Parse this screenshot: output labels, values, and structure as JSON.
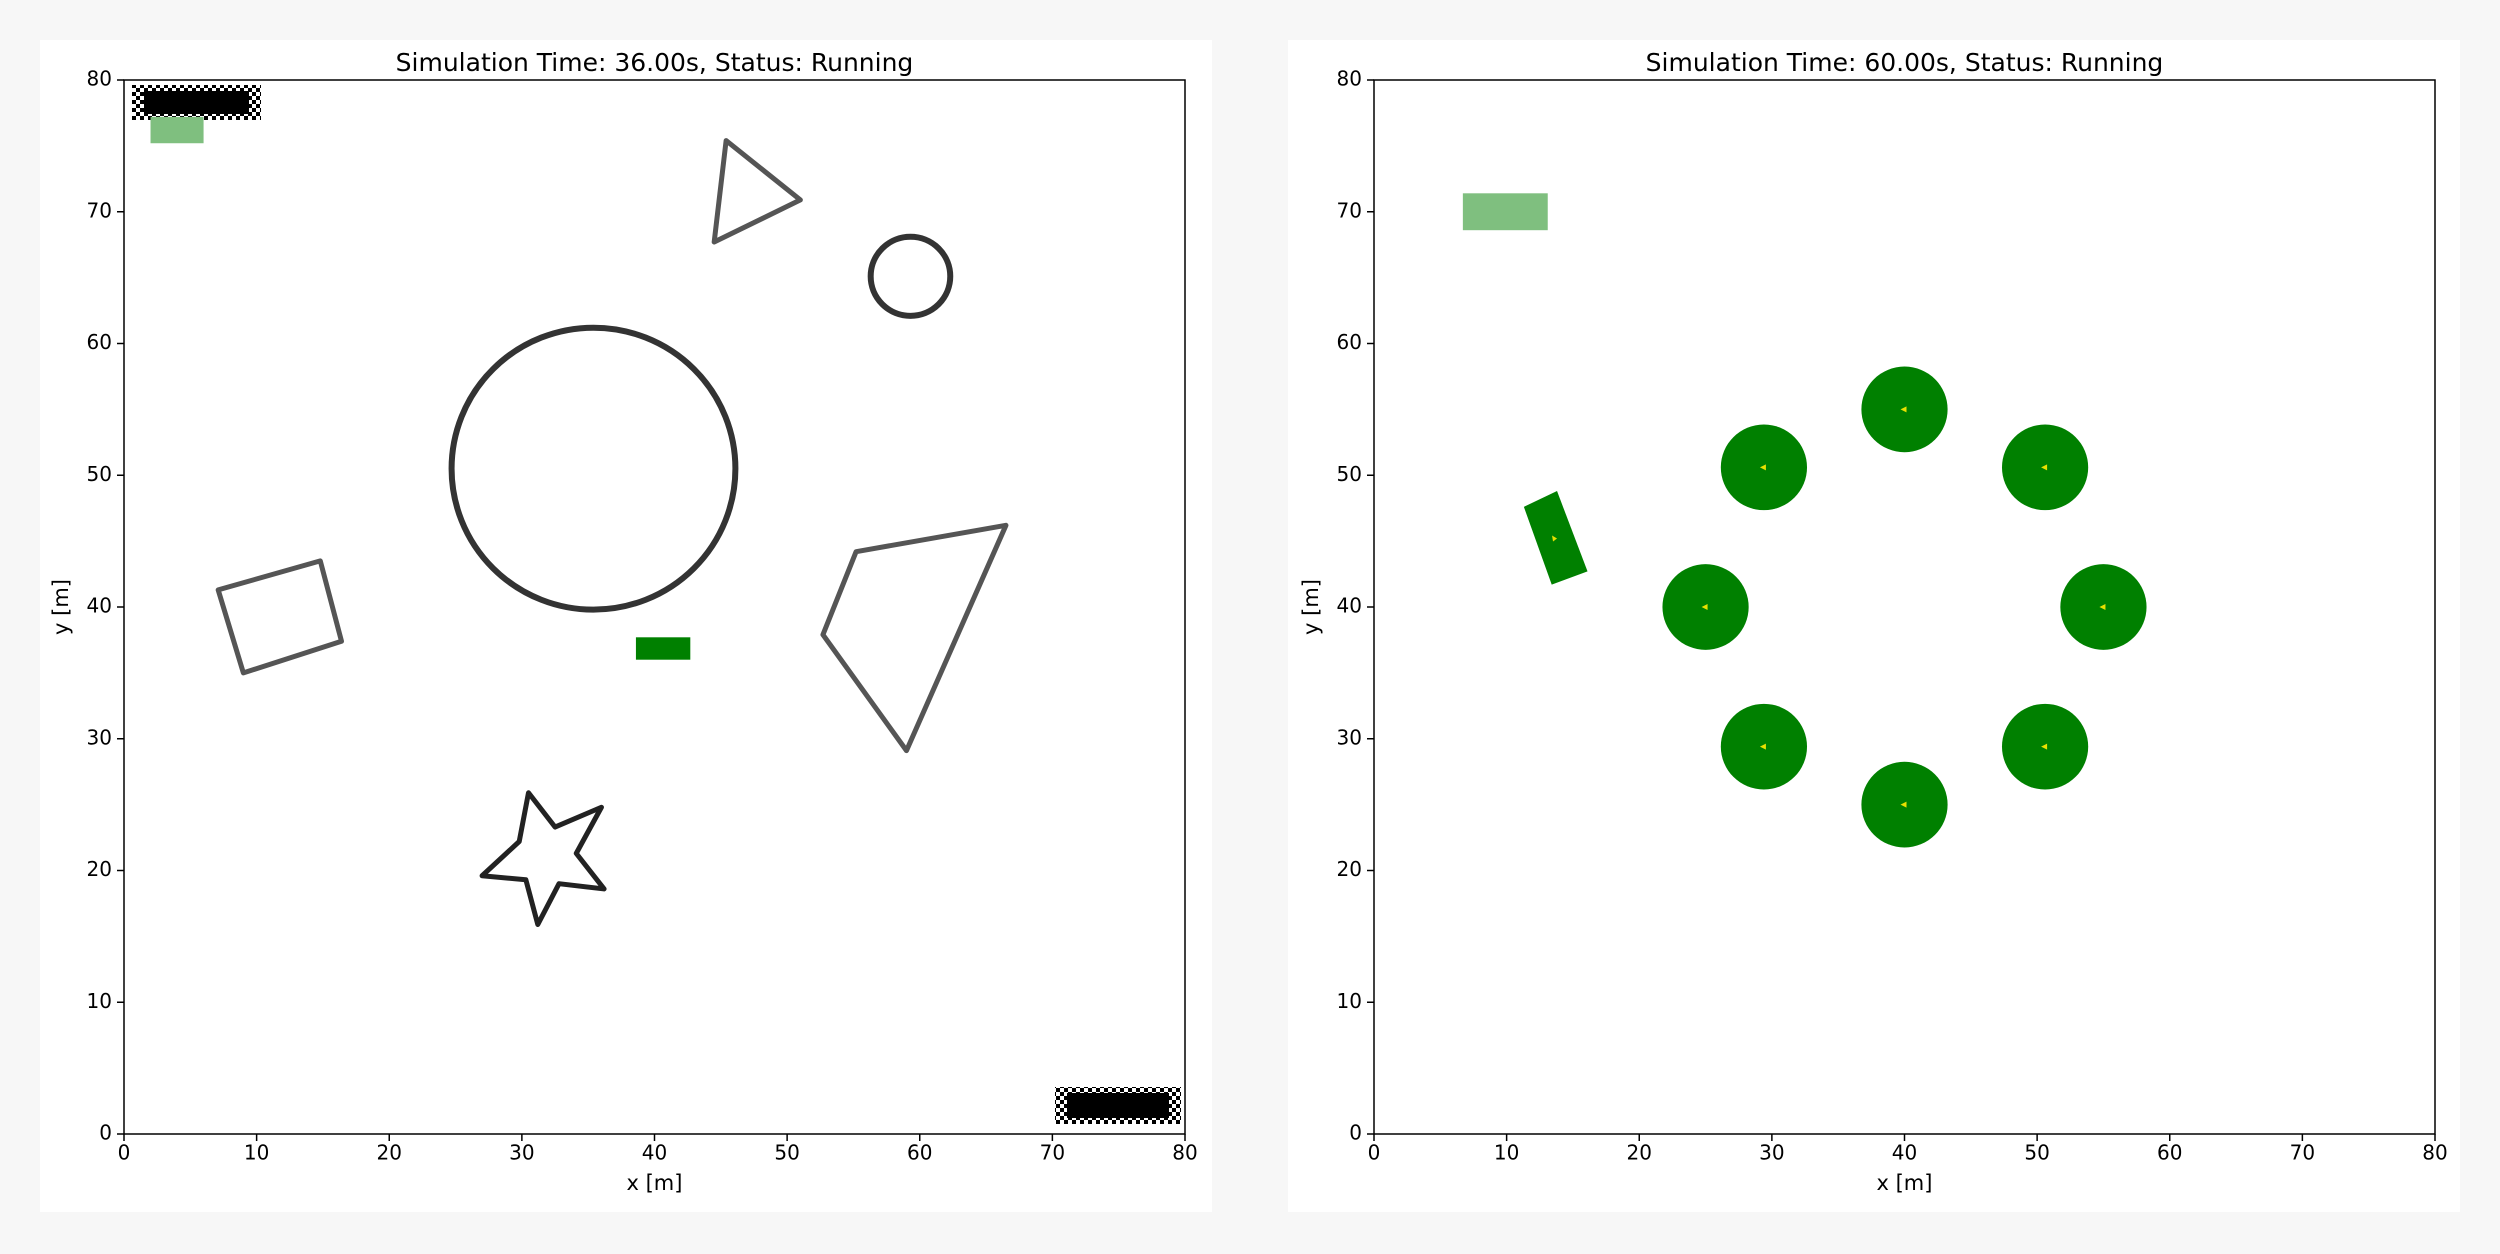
{
  "chart_data": [
    {
      "type": "scene",
      "title": "Simulation Time: 36.00s, Status: Running",
      "xlabel": "x [m]",
      "ylabel": "y [m]",
      "xlim": [
        0,
        80
      ],
      "ylim": [
        0,
        80
      ],
      "xticks": [
        0,
        10,
        20,
        30,
        40,
        50,
        60,
        70,
        80
      ],
      "yticks": [
        0,
        10,
        20,
        30,
        40,
        50,
        60,
        70,
        80
      ],
      "rects": [
        {
          "x": 2,
          "y": 75.2,
          "w": 4,
          "h": 2,
          "color": "#7fbf7f"
        },
        {
          "x": 38.6,
          "y": 36,
          "w": 4.1,
          "h": 1.7,
          "color": "#008000"
        }
      ],
      "circles": [
        {
          "x": 35.4,
          "y": 50.5,
          "r": 10.7,
          "color": "#333333",
          "fill": false
        },
        {
          "x": 59.3,
          "y": 65.1,
          "r": 3,
          "color": "#333333",
          "fill": false
        }
      ],
      "polygons": [
        {
          "points": [
            [
              45.4,
              75.4
            ],
            [
              51,
              70.9
            ],
            [
              44.5,
              67.7
            ]
          ],
          "color": "#555555",
          "fill": false
        },
        {
          "points": [
            [
              7.1,
              41.3
            ],
            [
              14.8,
              43.5
            ],
            [
              16.4,
              37.4
            ],
            [
              9,
              35
            ]
          ],
          "color": "#555555",
          "fill": false
        },
        {
          "points": [
            [
              55.2,
              44.2
            ],
            [
              66.5,
              46.2
            ],
            [
              59,
              29.1
            ],
            [
              52.7,
              37.9
            ]
          ],
          "color": "#555555",
          "fill": false
        },
        {
          "points": [
            [
              30.5,
              25.9
            ],
            [
              32.5,
              23.3
            ],
            [
              36,
              24.8
            ],
            [
              34.1,
              21.3
            ],
            [
              36.2,
              18.6
            ],
            [
              32.8,
              19
            ],
            [
              31.2,
              15.9
            ],
            [
              30.3,
              19.3
            ],
            [
              27,
              19.6
            ],
            [
              29.8,
              22.2
            ]
          ],
          "color": "#222222",
          "fill": false
        }
      ]
    },
    {
      "type": "scene",
      "title": "Simulation Time: 60.00s, Status: Running",
      "xlabel": "x [m]",
      "ylabel": "y [m]",
      "xlim": [
        0,
        80
      ],
      "ylim": [
        0,
        80
      ],
      "xticks": [
        0,
        10,
        20,
        30,
        40,
        50,
        60,
        70,
        80
      ],
      "yticks": [
        0,
        10,
        20,
        30,
        40,
        50,
        60,
        70,
        80
      ],
      "rects": [
        {
          "x": 6.7,
          "y": 68.6,
          "w": 6.4,
          "h": 2.8,
          "color": "#7fbf7f"
        }
      ],
      "circles": [
        {
          "x": 40,
          "y": 55,
          "r": 3.25,
          "color": "#008000",
          "fill": true
        },
        {
          "x": 29.4,
          "y": 50.6,
          "r": 3.25,
          "color": "#008000",
          "fill": true
        },
        {
          "x": 50.6,
          "y": 50.6,
          "r": 3.25,
          "color": "#008000",
          "fill": true
        },
        {
          "x": 25,
          "y": 40,
          "r": 3.25,
          "color": "#008000",
          "fill": true
        },
        {
          "x": 55,
          "y": 40,
          "r": 3.25,
          "color": "#008000",
          "fill": true
        },
        {
          "x": 29.4,
          "y": 29.4,
          "r": 3.25,
          "color": "#008000",
          "fill": true
        },
        {
          "x": 50.6,
          "y": 29.4,
          "r": 3.25,
          "color": "#008000",
          "fill": true
        },
        {
          "x": 40,
          "y": 25,
          "r": 3.25,
          "color": "#008000",
          "fill": true
        }
      ],
      "polygons": [
        {
          "points": [
            [
              11.3,
              47.6
            ],
            [
              13.8,
              48.8
            ],
            [
              16.1,
              42.7
            ],
            [
              13.4,
              41.7
            ]
          ],
          "color": "#008000",
          "fill": true
        }
      ]
    }
  ]
}
